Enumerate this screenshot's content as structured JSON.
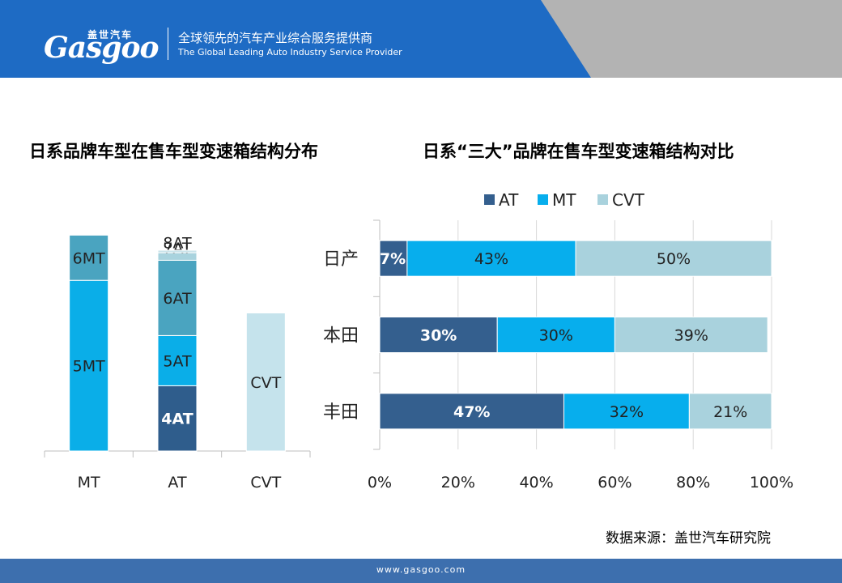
{
  "header": {
    "logo_cn": "盖世汽车",
    "logo_en": "Gasgoo",
    "tagline_cn": "全球领先的汽车产业综合服务提供商",
    "tagline_en": "The Global Leading Auto Industry Service Provider",
    "colors": {
      "blue": "#1e6bc4",
      "gray": "#b3b3b3"
    }
  },
  "chart_data": [
    {
      "type": "bar",
      "stacked": true,
      "title": "日系品牌车型在售车型变速箱结构分布",
      "categories": [
        "MT",
        "AT",
        "CVT"
      ],
      "series": [
        {
          "name": "5MT",
          "values": [
            68,
            0,
            0
          ],
          "color": "#0aaee8"
        },
        {
          "name": "6MT",
          "values": [
            18,
            0,
            0
          ],
          "color": "#4aa4c0"
        },
        {
          "name": "4AT",
          "values": [
            0,
            26,
            0
          ],
          "color": "#2f5d8c"
        },
        {
          "name": "5AT",
          "values": [
            0,
            20,
            0
          ],
          "color": "#0aaee8"
        },
        {
          "name": "6AT",
          "values": [
            0,
            30,
            0
          ],
          "color": "#4aa4c0"
        },
        {
          "name": "7AT",
          "values": [
            0,
            3,
            0
          ],
          "color": "#a9d3de"
        },
        {
          "name": "8AT",
          "values": [
            0,
            1,
            0
          ],
          "color": "#c9e3ea"
        },
        {
          "name": "CVT",
          "values": [
            0,
            0,
            55
          ],
          "color": "#c5e3ec"
        }
      ],
      "ylim": [
        0,
        100
      ],
      "grid": false
    },
    {
      "type": "bar",
      "orientation": "horizontal",
      "stacked": true,
      "title": "日系“三大”品牌在售车型变速箱结构对比",
      "categories": [
        "日产",
        "本田",
        "丰田"
      ],
      "series": [
        {
          "name": "AT",
          "values": [
            7,
            30,
            47
          ],
          "labels": [
            "7%",
            "30%",
            "47%"
          ],
          "color": "#345f8e"
        },
        {
          "name": "MT",
          "values": [
            43,
            30,
            32
          ],
          "labels": [
            "43%",
            "30%",
            "32%"
          ],
          "color": "#07aeed"
        },
        {
          "name": "CVT",
          "values": [
            50,
            39,
            21
          ],
          "labels": [
            "50%",
            "39%",
            "21%"
          ],
          "color": "#a9d2dd"
        }
      ],
      "xticks": [
        "0%",
        "20%",
        "40%",
        "60%",
        "80%",
        "100%"
      ],
      "xlim": [
        0,
        100
      ],
      "legend": "top",
      "grid": true
    }
  ],
  "source": "数据来源：盖世汽车研究院",
  "footer_url": "www.gasgoo.com"
}
